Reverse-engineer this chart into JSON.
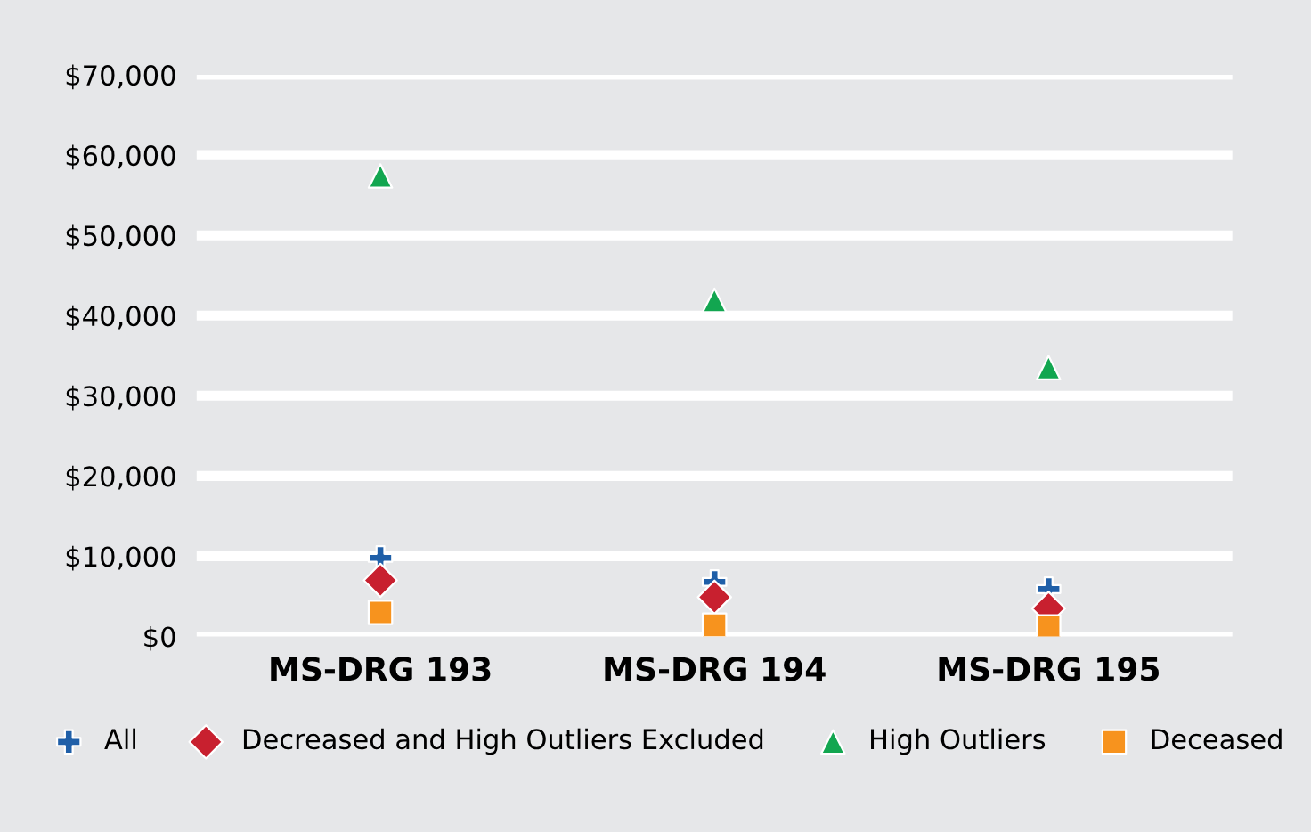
{
  "chart_data": {
    "type": "scatter",
    "categories": [
      "MS-DRG 193",
      "MS-DRG 194",
      "MS-DRG 195"
    ],
    "series": [
      {
        "name": "All",
        "color": "#1f5fa8",
        "marker": "cross",
        "values": [
          9800,
          6800,
          5900
        ]
      },
      {
        "name": "Decreased and High Outliers Excluded",
        "color": "#c8202f",
        "marker": "diamond",
        "values": [
          7000,
          4900,
          3500
        ]
      },
      {
        "name": "High Outliers",
        "color": "#12a650",
        "marker": "triangle",
        "values": [
          57400,
          41900,
          33500
        ]
      },
      {
        "name": "Deceased",
        "color": "#f7931e",
        "marker": "square",
        "values": [
          3000,
          1400,
          1200
        ]
      }
    ],
    "ylim": [
      0,
      70000
    ],
    "yticks": [
      {
        "value": 0,
        "label": "$0"
      },
      {
        "value": 10000,
        "label": "$10,000"
      },
      {
        "value": 20000,
        "label": "$20,000"
      },
      {
        "value": 30000,
        "label": "$30,000"
      },
      {
        "value": 40000,
        "label": "$40,000"
      },
      {
        "value": 50000,
        "label": "$50,000"
      },
      {
        "value": 60000,
        "label": "$60,000"
      },
      {
        "value": 70000,
        "label": "$70,000"
      }
    ],
    "grid": "y",
    "legend": "bottom"
  }
}
